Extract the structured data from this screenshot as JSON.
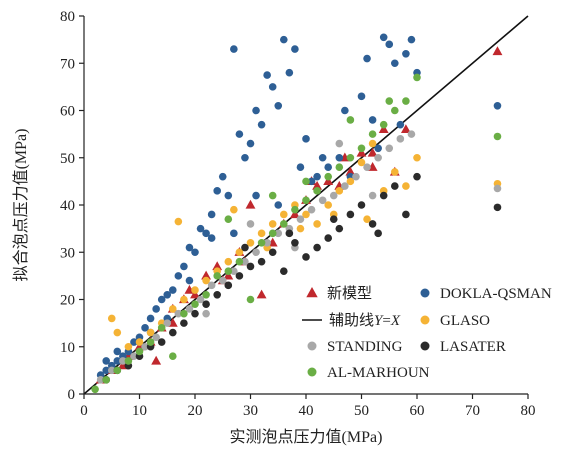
{
  "chart_data": {
    "type": "scatter",
    "xlabel": "实测泡点压力值(MPa)",
    "ylabel": "拟合泡点压力值(MPa)",
    "xlim": [
      0,
      80
    ],
    "ylim": [
      0,
      80
    ],
    "xticks": [
      "0",
      "10",
      "20",
      "30",
      "40",
      "50",
      "60",
      "70",
      "80"
    ],
    "yticks": [
      "0",
      "10",
      "20",
      "30",
      "40",
      "50",
      "60",
      "70",
      "80"
    ],
    "grid": false,
    "legend_position": "bottom-right",
    "reference_line": {
      "name": "辅助线",
      "formula_y": "Y",
      "formula_eq": "=",
      "formula_x": "X",
      "points": [
        [
          0,
          0
        ],
        [
          80,
          80
        ]
      ],
      "color": "#111111"
    },
    "series": [
      {
        "name": "新模型",
        "marker": "triangle",
        "color": "#c0282d",
        "points": [
          [
            3,
            3
          ],
          [
            5,
            5
          ],
          [
            7,
            6
          ],
          [
            8,
            8
          ],
          [
            10,
            10
          ],
          [
            12,
            11
          ],
          [
            14,
            14
          ],
          [
            16,
            15
          ],
          [
            18,
            20
          ],
          [
            19,
            22
          ],
          [
            20,
            21
          ],
          [
            22,
            25
          ],
          [
            24,
            27
          ],
          [
            26,
            25
          ],
          [
            28,
            30
          ],
          [
            30,
            40
          ],
          [
            32,
            21
          ],
          [
            34,
            32
          ],
          [
            36,
            36
          ],
          [
            38,
            38
          ],
          [
            40,
            41
          ],
          [
            42,
            44
          ],
          [
            44,
            45
          ],
          [
            46,
            44
          ],
          [
            48,
            47
          ],
          [
            50,
            51
          ],
          [
            52,
            51
          ],
          [
            54,
            56
          ],
          [
            56,
            47
          ],
          [
            58,
            56
          ],
          [
            74.5,
            72.5
          ],
          [
            13,
            7
          ],
          [
            16,
            18
          ],
          [
            25,
            24
          ],
          [
            29,
            28
          ],
          [
            41,
            45
          ],
          [
            47,
            50
          ],
          [
            52,
            48
          ]
        ]
      },
      {
        "name": "DOKLA-QSMAN",
        "marker": "circle",
        "color": "#2e5f95",
        "points": [
          [
            3,
            4
          ],
          [
            4,
            5
          ],
          [
            5,
            6
          ],
          [
            6,
            7
          ],
          [
            7,
            8
          ],
          [
            8,
            9
          ],
          [
            10,
            12
          ],
          [
            11,
            14
          ],
          [
            12,
            16
          ],
          [
            13,
            18
          ],
          [
            14,
            20
          ],
          [
            15,
            21
          ],
          [
            16,
            22
          ],
          [
            17,
            25
          ],
          [
            18,
            27
          ],
          [
            19,
            31
          ],
          [
            20,
            30
          ],
          [
            21,
            35
          ],
          [
            22,
            34
          ],
          [
            23,
            38
          ],
          [
            24,
            43
          ],
          [
            25,
            46
          ],
          [
            26,
            42
          ],
          [
            27,
            73
          ],
          [
            28,
            55
          ],
          [
            29,
            50
          ],
          [
            30,
            53
          ],
          [
            31,
            60
          ],
          [
            32,
            57
          ],
          [
            33,
            67.5
          ],
          [
            34,
            65
          ],
          [
            35,
            61
          ],
          [
            36,
            75
          ],
          [
            37,
            68
          ],
          [
            38,
            73
          ],
          [
            39,
            48
          ],
          [
            40,
            54
          ],
          [
            41,
            45
          ],
          [
            42,
            46
          ],
          [
            44,
            48
          ],
          [
            46,
            50
          ],
          [
            48,
            46
          ],
          [
            50,
            63
          ],
          [
            51,
            71
          ],
          [
            52,
            58
          ],
          [
            54,
            75.5
          ],
          [
            55,
            74
          ],
          [
            56,
            70
          ],
          [
            57,
            57
          ],
          [
            58,
            72
          ],
          [
            59,
            75
          ],
          [
            60,
            68
          ],
          [
            74.5,
            61
          ],
          [
            4,
            7
          ],
          [
            6,
            9
          ],
          [
            9,
            11
          ],
          [
            12,
            13
          ],
          [
            15,
            16
          ],
          [
            19,
            24
          ],
          [
            23,
            33
          ],
          [
            27,
            34
          ],
          [
            31,
            42
          ],
          [
            35,
            40
          ],
          [
            43,
            50
          ],
          [
            47,
            60
          ],
          [
            53,
            52
          ]
        ]
      },
      {
        "name": "GLASO",
        "marker": "circle",
        "color": "#f5b335",
        "points": [
          [
            5,
            16
          ],
          [
            6,
            13
          ],
          [
            8,
            10
          ],
          [
            10,
            11
          ],
          [
            12,
            13
          ],
          [
            14,
            15
          ],
          [
            16,
            18
          ],
          [
            17,
            36.5
          ],
          [
            18,
            20
          ],
          [
            20,
            22
          ],
          [
            22,
            24
          ],
          [
            24,
            26
          ],
          [
            26,
            28
          ],
          [
            28,
            30
          ],
          [
            30,
            32
          ],
          [
            32,
            34
          ],
          [
            34,
            36
          ],
          [
            36,
            38
          ],
          [
            38,
            40
          ],
          [
            40,
            38
          ],
          [
            42,
            36
          ],
          [
            44,
            40
          ],
          [
            46,
            43
          ],
          [
            48,
            45
          ],
          [
            50,
            49
          ],
          [
            52,
            53
          ],
          [
            54,
            43
          ],
          [
            56,
            47
          ],
          [
            58,
            44
          ],
          [
            60,
            50
          ],
          [
            74.5,
            44.5
          ],
          [
            27,
            39
          ],
          [
            33,
            31
          ],
          [
            39,
            35
          ],
          [
            45,
            38
          ],
          [
            51,
            37
          ]
        ]
      },
      {
        "name": "STANDING",
        "marker": "circle",
        "color": "#a8a8a8",
        "points": [
          [
            3,
            3
          ],
          [
            5,
            5
          ],
          [
            7,
            7
          ],
          [
            9,
            8
          ],
          [
            11,
            10
          ],
          [
            13,
            12
          ],
          [
            15,
            15
          ],
          [
            17,
            17
          ],
          [
            19,
            18
          ],
          [
            21,
            20
          ],
          [
            23,
            23
          ],
          [
            25,
            24
          ],
          [
            27,
            26
          ],
          [
            29,
            28
          ],
          [
            31,
            30
          ],
          [
            33,
            32
          ],
          [
            35,
            34
          ],
          [
            37,
            35
          ],
          [
            39,
            37
          ],
          [
            41,
            39
          ],
          [
            43,
            41
          ],
          [
            45,
            42
          ],
          [
            47,
            44
          ],
          [
            49,
            46
          ],
          [
            51,
            48
          ],
          [
            53,
            50
          ],
          [
            55,
            52
          ],
          [
            57,
            54
          ],
          [
            59,
            55
          ],
          [
            74.5,
            43.5
          ],
          [
            22,
            17
          ],
          [
            30,
            36
          ],
          [
            38,
            31
          ],
          [
            46,
            53
          ],
          [
            52,
            42
          ]
        ]
      },
      {
        "name": "LASATER",
        "marker": "circle",
        "color": "#2b2b2b",
        "points": [
          [
            4,
            3
          ],
          [
            6,
            5
          ],
          [
            8,
            6
          ],
          [
            10,
            8
          ],
          [
            12,
            10
          ],
          [
            14,
            11
          ],
          [
            16,
            13
          ],
          [
            18,
            15
          ],
          [
            20,
            17
          ],
          [
            22,
            19
          ],
          [
            24,
            21
          ],
          [
            26,
            23
          ],
          [
            28,
            25
          ],
          [
            30,
            27
          ],
          [
            32,
            28
          ],
          [
            34,
            30
          ],
          [
            36,
            26
          ],
          [
            38,
            32
          ],
          [
            40,
            29
          ],
          [
            42,
            31
          ],
          [
            44,
            33
          ],
          [
            46,
            35
          ],
          [
            48,
            38
          ],
          [
            50,
            40
          ],
          [
            52,
            36
          ],
          [
            54,
            42
          ],
          [
            56,
            44
          ],
          [
            58,
            38
          ],
          [
            60,
            46
          ],
          [
            74.5,
            39.5
          ],
          [
            29,
            31
          ],
          [
            37,
            34
          ],
          [
            45,
            37
          ],
          [
            53,
            34
          ]
        ]
      },
      {
        "name": "AL-MARHOUN",
        "marker": "circle",
        "color": "#6aae45",
        "points": [
          [
            2,
            1
          ],
          [
            4,
            3
          ],
          [
            6,
            5
          ],
          [
            8,
            7
          ],
          [
            10,
            9
          ],
          [
            12,
            11
          ],
          [
            14,
            14
          ],
          [
            16,
            8
          ],
          [
            18,
            17
          ],
          [
            20,
            19
          ],
          [
            22,
            21
          ],
          [
            24,
            25
          ],
          [
            26,
            26
          ],
          [
            28,
            28
          ],
          [
            30,
            20
          ],
          [
            32,
            32
          ],
          [
            34,
            34
          ],
          [
            36,
            36
          ],
          [
            38,
            39
          ],
          [
            40,
            41
          ],
          [
            42,
            43
          ],
          [
            44,
            46
          ],
          [
            46,
            48
          ],
          [
            48,
            50
          ],
          [
            50,
            52
          ],
          [
            52,
            55
          ],
          [
            54,
            57
          ],
          [
            56,
            60
          ],
          [
            58,
            62
          ],
          [
            60,
            67
          ],
          [
            74.5,
            54.5
          ],
          [
            26,
            37
          ],
          [
            34,
            42
          ],
          [
            40,
            45
          ],
          [
            48,
            58
          ],
          [
            55,
            62
          ]
        ]
      }
    ]
  }
}
